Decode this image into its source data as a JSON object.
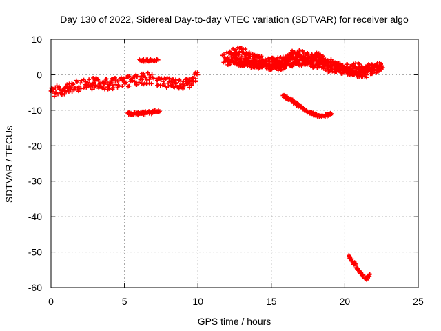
{
  "chart_data": {
    "type": "scatter",
    "title": "Day 130 of 2022, Sidereal Day-to-day VTEC variation (SDTVAR) for receiver algo",
    "xlabel": "GPS time / hours",
    "ylabel": "SDTVAR / TECUs",
    "xlim": [
      0,
      25
    ],
    "ylim": [
      -60,
      10
    ],
    "xticks": [
      0,
      5,
      10,
      15,
      20,
      25
    ],
    "yticks": [
      10,
      0,
      -10,
      -20,
      -30,
      -40,
      -50,
      -60
    ],
    "grid": true,
    "marker": "plus",
    "series_color": "#ff0000",
    "series": [
      {
        "name": "band-early",
        "spread": 1.6,
        "points": [
          [
            0,
            -5
          ],
          [
            0.5,
            -4.5
          ],
          [
            1,
            -3.8
          ],
          [
            1.5,
            -3.2
          ],
          [
            2,
            -3
          ],
          [
            2.5,
            -2.8
          ],
          [
            3,
            -2.3
          ],
          [
            3.5,
            -2.6
          ],
          [
            4,
            -2.7
          ],
          [
            4.5,
            -2.3
          ],
          [
            5,
            -2
          ],
          [
            5.5,
            -1.8
          ],
          [
            6,
            -1.3
          ],
          [
            6.5,
            -1
          ],
          [
            7,
            -1
          ]
        ]
      },
      {
        "name": "band-mid",
        "spread": 1.4,
        "points": [
          [
            7.2,
            -2
          ],
          [
            7.8,
            -2.2
          ],
          [
            8.4,
            -2.5
          ],
          [
            9,
            -2.8
          ],
          [
            9.5,
            -2
          ],
          [
            10,
            0
          ]
        ]
      },
      {
        "name": "seg-a",
        "spread": 0.4,
        "points": [
          [
            6,
            4
          ],
          [
            6.5,
            4.1
          ],
          [
            7,
            4
          ],
          [
            7.3,
            4.2
          ]
        ]
      },
      {
        "name": "seg-b",
        "spread": 0.5,
        "points": [
          [
            5.2,
            -11
          ],
          [
            5.8,
            -11
          ],
          [
            6.4,
            -10.8
          ],
          [
            7,
            -10.5
          ],
          [
            7.4,
            -10.3
          ]
        ]
      },
      {
        "name": "band-late-1",
        "spread": 1.4,
        "points": [
          [
            11.7,
            4.5
          ],
          [
            12,
            5
          ],
          [
            12.3,
            6
          ],
          [
            12.8,
            6.5
          ],
          [
            13.2,
            6
          ],
          [
            13.6,
            5
          ],
          [
            14,
            4.5
          ],
          [
            14.5,
            4
          ],
          [
            15,
            3.5
          ],
          [
            15.5,
            3
          ],
          [
            16,
            4
          ],
          [
            16.5,
            4
          ],
          [
            17,
            4.5
          ],
          [
            17.5,
            3.5
          ],
          [
            18,
            3
          ],
          [
            18.5,
            2.5
          ],
          [
            19,
            2
          ],
          [
            19.5,
            2
          ],
          [
            20,
            1.5
          ],
          [
            20.5,
            2
          ],
          [
            21,
            2
          ],
          [
            21.5,
            1.5
          ],
          [
            22,
            2
          ],
          [
            22.5,
            2.3
          ]
        ]
      },
      {
        "name": "band-late-2",
        "spread": 1.2,
        "points": [
          [
            12,
            4
          ],
          [
            13,
            3.5
          ],
          [
            14,
            3
          ],
          [
            15,
            3.5
          ],
          [
            16,
            4
          ],
          [
            16.5,
            6
          ],
          [
            16.8,
            6.5
          ],
          [
            17.2,
            5.5
          ],
          [
            18,
            4
          ],
          [
            19,
            2.5
          ],
          [
            20,
            1
          ],
          [
            21,
            1
          ],
          [
            22,
            1.5
          ],
          [
            22.6,
            2
          ]
        ]
      },
      {
        "name": "band-late-3",
        "spread": 1.0,
        "points": [
          [
            12.5,
            4
          ],
          [
            13.5,
            3
          ],
          [
            14.5,
            2.5
          ],
          [
            15.5,
            2
          ],
          [
            16.5,
            3
          ],
          [
            17.5,
            4
          ],
          [
            18,
            5.5
          ],
          [
            18.5,
            4.5
          ],
          [
            19.5,
            2.5
          ],
          [
            20.5,
            0.5
          ],
          [
            21.5,
            0
          ]
        ]
      },
      {
        "name": "arc-1",
        "spread": 0.4,
        "points": [
          [
            15.8,
            -6
          ],
          [
            16.3,
            -7
          ],
          [
            16.8,
            -8.5
          ],
          [
            17.3,
            -10
          ],
          [
            17.8,
            -11
          ],
          [
            18.3,
            -11.7
          ],
          [
            18.8,
            -11.5
          ],
          [
            19.1,
            -11
          ]
        ]
      },
      {
        "name": "arc-2",
        "spread": 0.4,
        "points": [
          [
            20.3,
            -51.2
          ],
          [
            20.6,
            -53
          ],
          [
            20.9,
            -55
          ],
          [
            21.2,
            -56.6
          ],
          [
            21.5,
            -57.5
          ],
          [
            21.7,
            -56.2
          ]
        ]
      }
    ]
  }
}
